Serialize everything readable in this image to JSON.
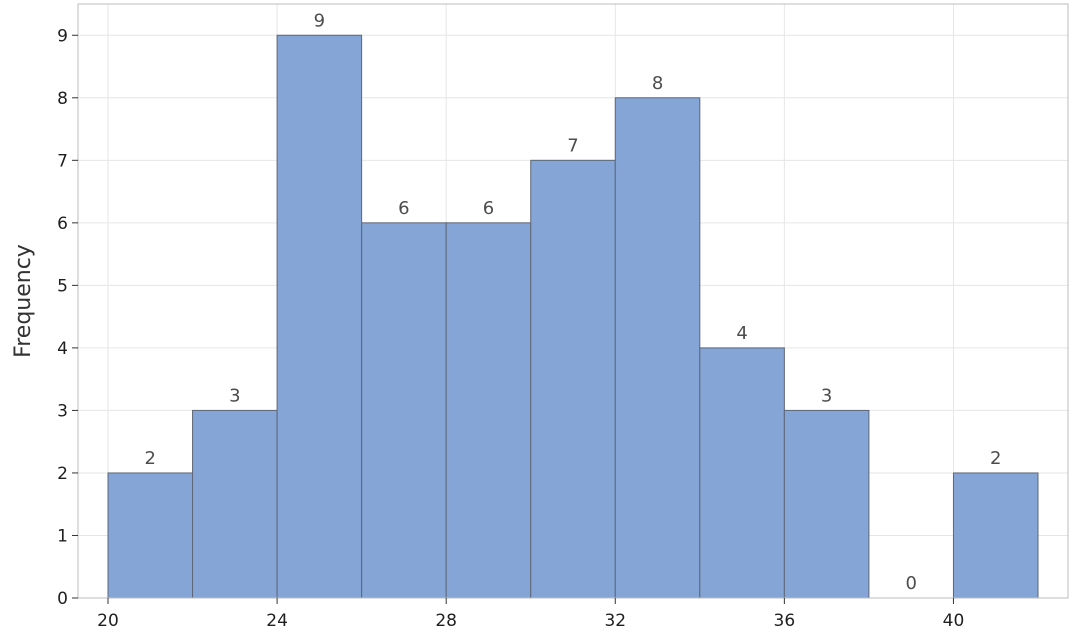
{
  "chart_data": {
    "type": "bar",
    "title": "",
    "xlabel": "",
    "ylabel": "Frequency",
    "bin_edges": [
      20,
      22,
      24,
      26,
      28,
      30,
      32,
      34,
      36,
      38,
      40,
      42
    ],
    "values": [
      2,
      3,
      9,
      6,
      6,
      7,
      8,
      4,
      3,
      0,
      2
    ],
    "data_labels": [
      "2",
      "3",
      "9",
      "6",
      "6",
      "7",
      "8",
      "4",
      "3",
      "0",
      "2"
    ],
    "xlim": [
      20,
      42
    ],
    "ylim": [
      0,
      9.5
    ],
    "x_ticks": [
      20,
      24,
      28,
      32,
      36,
      40
    ],
    "x_tick_labels": [
      "20",
      "24",
      "28",
      "32",
      "36",
      "40"
    ],
    "y_ticks": [
      0,
      1,
      2,
      3,
      4,
      5,
      6,
      7,
      8,
      9
    ],
    "y_tick_labels": [
      "0",
      "1",
      "2",
      "3",
      "4",
      "5",
      "6",
      "7",
      "8",
      "9"
    ],
    "grid": true,
    "legend": "none",
    "colors": {
      "bar_fill": "#84a5d5",
      "bar_stroke": "#5e6777",
      "grid": "#e6e6e6",
      "frame": "#bdbdbd",
      "axis": "#333333"
    }
  }
}
